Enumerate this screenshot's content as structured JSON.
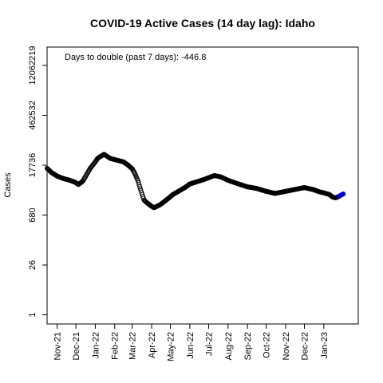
{
  "chart_data": {
    "type": "scatter",
    "title": "COVID-19 Active Cases (14 day lag): Idaho",
    "xlabel": "",
    "ylabel": "Cases",
    "y_scale": "log",
    "y_ticks": [
      {
        "value": 1,
        "label": "1"
      },
      {
        "value": 26,
        "label": "26"
      },
      {
        "value": 680,
        "label": "680"
      },
      {
        "value": 17736,
        "label": "17736"
      },
      {
        "value": 462532,
        "label": "462532"
      },
      {
        "value": 12062219,
        "label": "12062219"
      }
    ],
    "ylim": [
      0.55,
      40000000
    ],
    "xlim": [
      "2021-10-16",
      "2023-02-25"
    ],
    "x_ticks": [
      {
        "date": "2021-11-01",
        "label": "Nov-21"
      },
      {
        "date": "2021-12-01",
        "label": "Dec-21"
      },
      {
        "date": "2022-01-01",
        "label": "Jan-22"
      },
      {
        "date": "2022-02-01",
        "label": "Feb-22"
      },
      {
        "date": "2022-03-01",
        "label": "Mar-22"
      },
      {
        "date": "2022-04-01",
        "label": "Apr-22"
      },
      {
        "date": "2022-05-01",
        "label": "May-22"
      },
      {
        "date": "2022-06-01",
        "label": "Jun-22"
      },
      {
        "date": "2022-07-01",
        "label": "Jul-22"
      },
      {
        "date": "2022-08-01",
        "label": "Aug-22"
      },
      {
        "date": "2022-09-01",
        "label": "Sep-22"
      },
      {
        "date": "2022-10-01",
        "label": "Oct-22"
      },
      {
        "date": "2022-11-01",
        "label": "Nov-22"
      },
      {
        "date": "2022-12-01",
        "label": "Dec-22"
      },
      {
        "date": "2023-01-01",
        "label": "Jan-23"
      }
    ],
    "annotation": "Days to double (past 7 days): -446.8",
    "grid": false,
    "legend": "none",
    "series": [
      {
        "marker": "open-circle",
        "color": "#000000",
        "recent_points_color": "#0000cc",
        "x": [
          "2021-10-16",
          "2021-10-23",
          "2021-11-01",
          "2021-11-10",
          "2021-11-20",
          "2021-11-30",
          "2021-12-05",
          "2021-12-12",
          "2021-12-18",
          "2021-12-24",
          "2022-01-01",
          "2022-01-05",
          "2022-01-10",
          "2022-01-15",
          "2022-01-25",
          "2022-02-05",
          "2022-02-15",
          "2022-02-22",
          "2022-03-01",
          "2022-03-05",
          "2022-03-10",
          "2022-03-15",
          "2022-03-20",
          "2022-03-25",
          "2022-04-01",
          "2022-04-05",
          "2022-04-15",
          "2022-04-25",
          "2022-05-05",
          "2022-05-15",
          "2022-05-25",
          "2022-06-01",
          "2022-06-15",
          "2022-06-25",
          "2022-07-01",
          "2022-07-10",
          "2022-07-20",
          "2022-08-01",
          "2022-08-15",
          "2022-09-01",
          "2022-09-15",
          "2022-10-01",
          "2022-10-15",
          "2022-11-01",
          "2022-11-15",
          "2022-12-01",
          "2022-12-15",
          "2022-12-25",
          "2023-01-01",
          "2023-01-10",
          "2023-01-15",
          "2023-01-20",
          "2023-01-25",
          "2023-02-01"
        ],
        "y": [
          14500,
          11000,
          8700,
          7500,
          6700,
          5800,
          5000,
          6200,
          9500,
          14500,
          22000,
          28000,
          32000,
          36000,
          27500,
          24500,
          22000,
          18000,
          14000,
          10500,
          6500,
          3300,
          1800,
          1500,
          1200,
          1100,
          1350,
          1850,
          2600,
          3300,
          4200,
          5200,
          6200,
          7100,
          7800,
          9000,
          8300,
          6600,
          5400,
          4300,
          3900,
          3200,
          2800,
          3200,
          3600,
          4100,
          3600,
          3100,
          2900,
          2600,
          2200,
          2100,
          2300,
          2700
        ]
      }
    ]
  }
}
